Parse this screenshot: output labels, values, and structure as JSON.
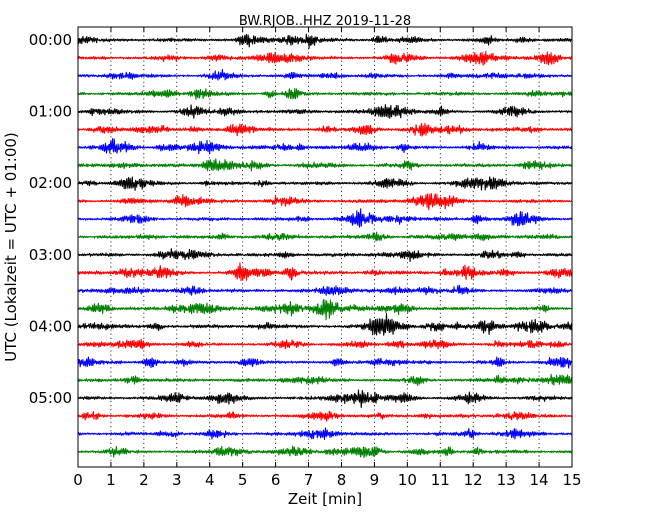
{
  "chart_data": {
    "type": "line",
    "title": "BW.RJOB..HHZ 2019-11-28",
    "xlabel": "Zeit  [min]",
    "ylabel": "UTC (Lokalzeit = UTC + 01:00)",
    "xlim": [
      0,
      15
    ],
    "x_ticks": [
      "0",
      "1",
      "2",
      "3",
      "4",
      "5",
      "6",
      "7",
      "8",
      "9",
      "10",
      "11",
      "12",
      "13",
      "14",
      "15"
    ],
    "y_ticks": [
      "00:00",
      "01:00",
      "02:00",
      "03:00",
      "04:00",
      "05:00"
    ],
    "grid": "vertical-dotted",
    "trace_interval_minutes": 15,
    "trace_count": 24,
    "trace_colors": [
      "#000000",
      "#ff0000",
      "#0000ff",
      "#008000"
    ],
    "series_description": "24 seismogram traces of 15 minutes each, colors cycling black, red, blue, green"
  }
}
